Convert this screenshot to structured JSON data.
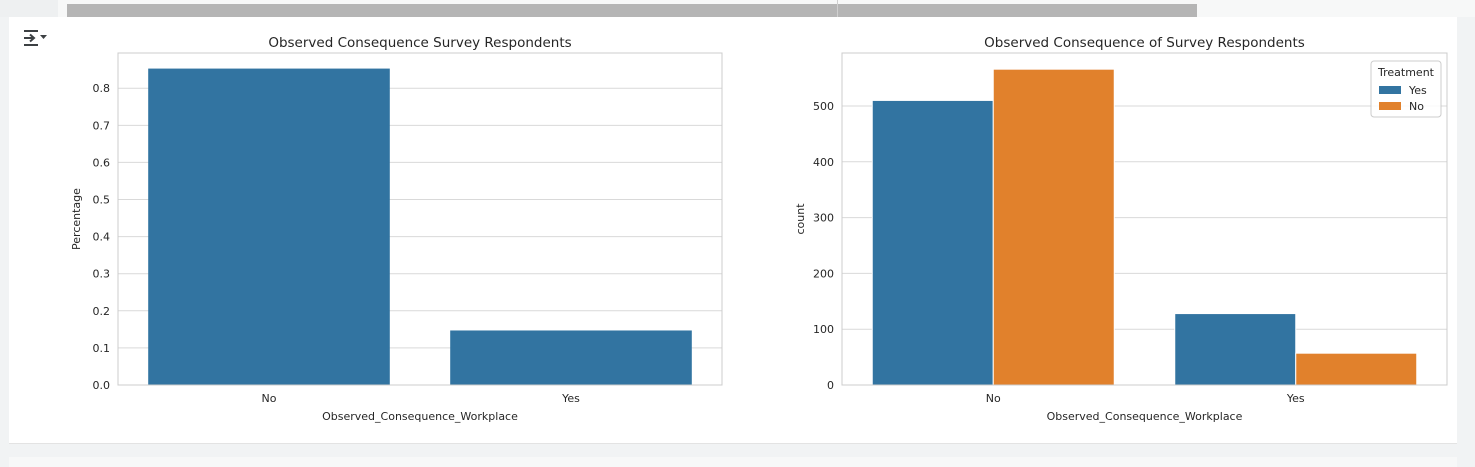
{
  "toolbar": {
    "output_toggle_icon": "collapse-output-icon"
  },
  "colors": {
    "blue": "#3274a1",
    "orange": "#e1812c",
    "grid": "#d9d9d9",
    "frame": "#cccccc"
  },
  "chart_data": [
    {
      "type": "bar",
      "title": "Observed Consequence Survey Respondents",
      "xlabel": "Observed_Consequence_Workplace",
      "ylabel": "Percentage",
      "categories": [
        "No",
        "Yes"
      ],
      "values": [
        0.853,
        0.147
      ],
      "ylim": [
        0,
        0.895
      ],
      "yticks": [
        0.0,
        0.1,
        0.2,
        0.3,
        0.4,
        0.5,
        0.6,
        0.7,
        0.8
      ],
      "ytick_labels": [
        "0.0",
        "0.1",
        "0.2",
        "0.3",
        "0.4",
        "0.5",
        "0.6",
        "0.7",
        "0.8"
      ],
      "grid": true,
      "legend": null
    },
    {
      "type": "bar",
      "title": "Observed Consequence of Survey Respondents",
      "xlabel": "Observed_Consequence_Workplace",
      "ylabel": "count",
      "categories": [
        "No",
        "Yes"
      ],
      "series": [
        {
          "name": "Yes",
          "values": [
            510,
            128
          ]
        },
        {
          "name": "No",
          "values": [
            566,
            57
          ]
        }
      ],
      "ylim": [
        0,
        595
      ],
      "yticks": [
        0,
        100,
        200,
        300,
        400,
        500
      ],
      "ytick_labels": [
        "0",
        "100",
        "200",
        "300",
        "400",
        "500"
      ],
      "grid": true,
      "legend": {
        "title": "Treatment",
        "placement": "top-right"
      }
    }
  ]
}
